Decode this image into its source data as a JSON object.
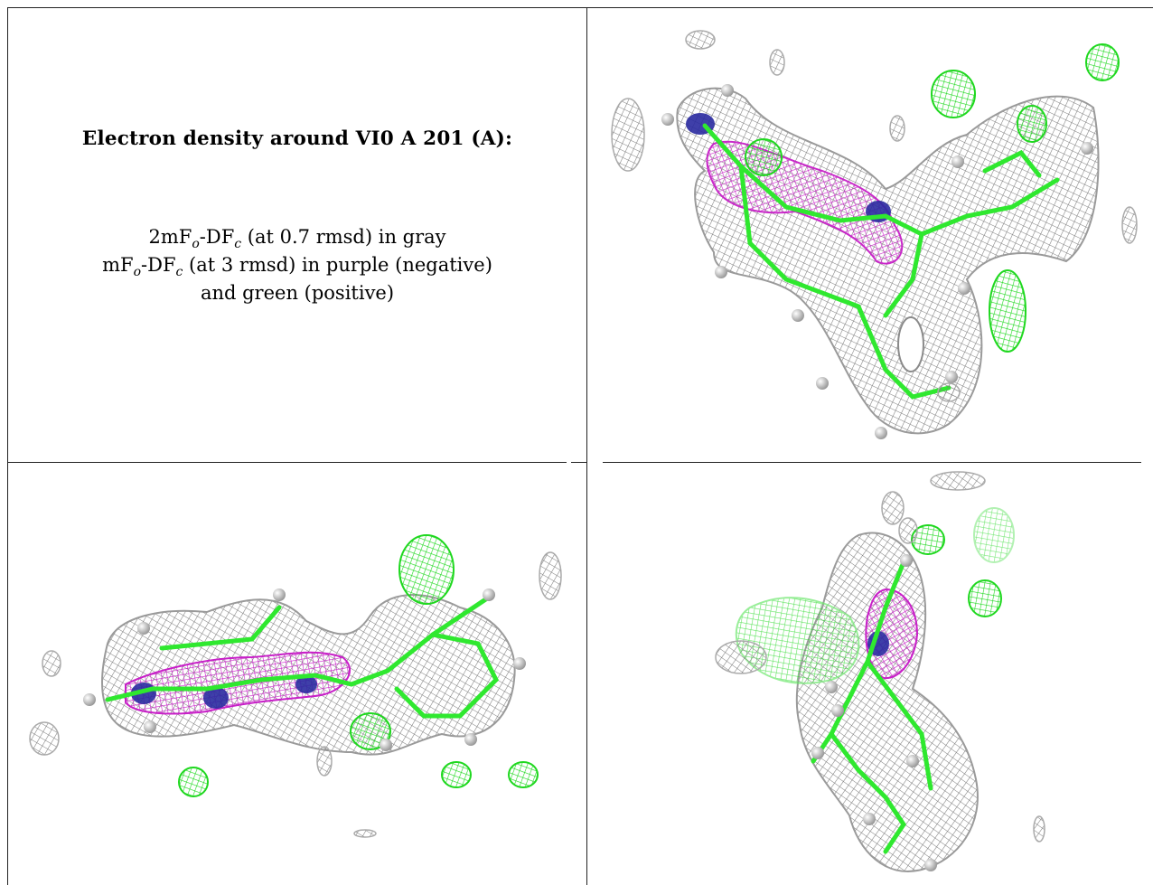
{
  "table": {
    "heading": "Electron density around VI0 A 201 (A):",
    "legend": {
      "line1": {
        "prefix": "2mF",
        "sub1": "o",
        "middle": "-DF",
        "sub2": "c",
        "suffix": " (at 0.7 rmsd) in gray"
      },
      "line2": {
        "prefix": "mF",
        "sub1": "o",
        "middle": "-DF",
        "sub2": "c",
        "suffix": " (at 3 rmsd) in purple (negative)"
      },
      "line3": "and green (positive)"
    }
  },
  "colors": {
    "map_2fofc": "#8a8a8a",
    "map_fofc_negative": "#cc22cc",
    "map_fofc_positive": "#22dd22",
    "carbon": "#33ee33",
    "nitrogen": "#2222aa",
    "hydrogen": "#e0e0e0"
  },
  "panels": [
    {
      "view": "density-view-top-right"
    },
    {
      "view": "density-view-bottom-left"
    },
    {
      "view": "density-view-bottom-right"
    }
  ]
}
